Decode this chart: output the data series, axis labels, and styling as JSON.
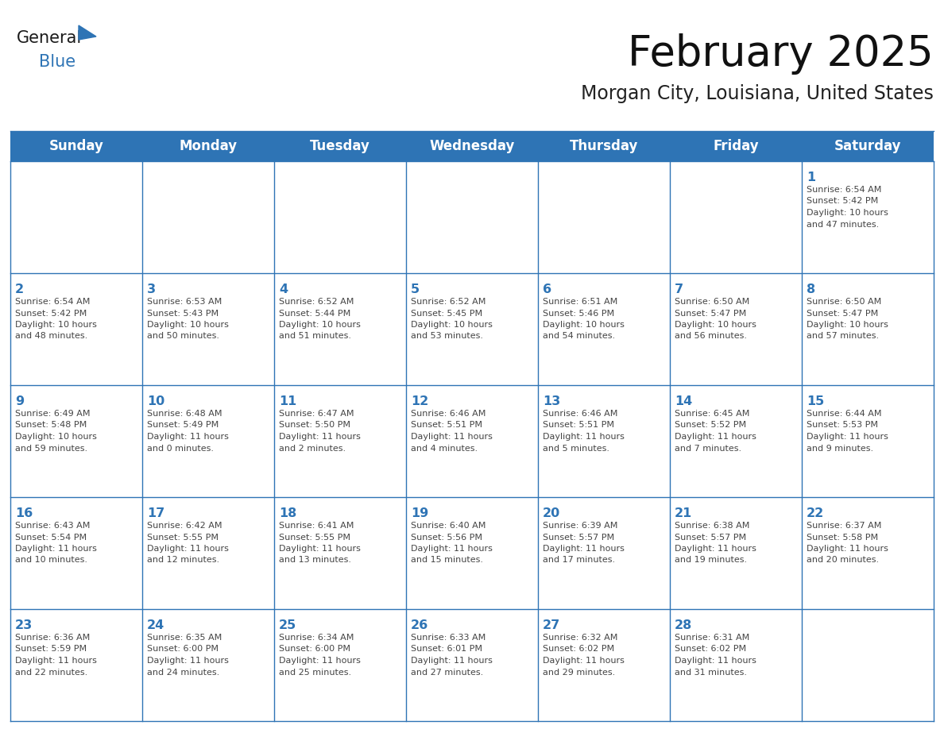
{
  "title": "February 2025",
  "subtitle": "Morgan City, Louisiana, United States",
  "header_color": "#2e74b5",
  "header_text_color": "#ffffff",
  "day_names": [
    "Sunday",
    "Monday",
    "Tuesday",
    "Wednesday",
    "Thursday",
    "Friday",
    "Saturday"
  ],
  "cell_bg_color": "#ffffff",
  "grid_color": "#2e74b5",
  "day_num_color": "#2e74b5",
  "text_color": "#444444",
  "logo_general_color": "#1a1a1a",
  "logo_blue_color": "#2e74b5",
  "weeks": [
    [
      {
        "day": null,
        "info": ""
      },
      {
        "day": null,
        "info": ""
      },
      {
        "day": null,
        "info": ""
      },
      {
        "day": null,
        "info": ""
      },
      {
        "day": null,
        "info": ""
      },
      {
        "day": null,
        "info": ""
      },
      {
        "day": 1,
        "info": "Sunrise: 6:54 AM\nSunset: 5:42 PM\nDaylight: 10 hours\nand 47 minutes."
      }
    ],
    [
      {
        "day": 2,
        "info": "Sunrise: 6:54 AM\nSunset: 5:42 PM\nDaylight: 10 hours\nand 48 minutes."
      },
      {
        "day": 3,
        "info": "Sunrise: 6:53 AM\nSunset: 5:43 PM\nDaylight: 10 hours\nand 50 minutes."
      },
      {
        "day": 4,
        "info": "Sunrise: 6:52 AM\nSunset: 5:44 PM\nDaylight: 10 hours\nand 51 minutes."
      },
      {
        "day": 5,
        "info": "Sunrise: 6:52 AM\nSunset: 5:45 PM\nDaylight: 10 hours\nand 53 minutes."
      },
      {
        "day": 6,
        "info": "Sunrise: 6:51 AM\nSunset: 5:46 PM\nDaylight: 10 hours\nand 54 minutes."
      },
      {
        "day": 7,
        "info": "Sunrise: 6:50 AM\nSunset: 5:47 PM\nDaylight: 10 hours\nand 56 minutes."
      },
      {
        "day": 8,
        "info": "Sunrise: 6:50 AM\nSunset: 5:47 PM\nDaylight: 10 hours\nand 57 minutes."
      }
    ],
    [
      {
        "day": 9,
        "info": "Sunrise: 6:49 AM\nSunset: 5:48 PM\nDaylight: 10 hours\nand 59 minutes."
      },
      {
        "day": 10,
        "info": "Sunrise: 6:48 AM\nSunset: 5:49 PM\nDaylight: 11 hours\nand 0 minutes."
      },
      {
        "day": 11,
        "info": "Sunrise: 6:47 AM\nSunset: 5:50 PM\nDaylight: 11 hours\nand 2 minutes."
      },
      {
        "day": 12,
        "info": "Sunrise: 6:46 AM\nSunset: 5:51 PM\nDaylight: 11 hours\nand 4 minutes."
      },
      {
        "day": 13,
        "info": "Sunrise: 6:46 AM\nSunset: 5:51 PM\nDaylight: 11 hours\nand 5 minutes."
      },
      {
        "day": 14,
        "info": "Sunrise: 6:45 AM\nSunset: 5:52 PM\nDaylight: 11 hours\nand 7 minutes."
      },
      {
        "day": 15,
        "info": "Sunrise: 6:44 AM\nSunset: 5:53 PM\nDaylight: 11 hours\nand 9 minutes."
      }
    ],
    [
      {
        "day": 16,
        "info": "Sunrise: 6:43 AM\nSunset: 5:54 PM\nDaylight: 11 hours\nand 10 minutes."
      },
      {
        "day": 17,
        "info": "Sunrise: 6:42 AM\nSunset: 5:55 PM\nDaylight: 11 hours\nand 12 minutes."
      },
      {
        "day": 18,
        "info": "Sunrise: 6:41 AM\nSunset: 5:55 PM\nDaylight: 11 hours\nand 13 minutes."
      },
      {
        "day": 19,
        "info": "Sunrise: 6:40 AM\nSunset: 5:56 PM\nDaylight: 11 hours\nand 15 minutes."
      },
      {
        "day": 20,
        "info": "Sunrise: 6:39 AM\nSunset: 5:57 PM\nDaylight: 11 hours\nand 17 minutes."
      },
      {
        "day": 21,
        "info": "Sunrise: 6:38 AM\nSunset: 5:57 PM\nDaylight: 11 hours\nand 19 minutes."
      },
      {
        "day": 22,
        "info": "Sunrise: 6:37 AM\nSunset: 5:58 PM\nDaylight: 11 hours\nand 20 minutes."
      }
    ],
    [
      {
        "day": 23,
        "info": "Sunrise: 6:36 AM\nSunset: 5:59 PM\nDaylight: 11 hours\nand 22 minutes."
      },
      {
        "day": 24,
        "info": "Sunrise: 6:35 AM\nSunset: 6:00 PM\nDaylight: 11 hours\nand 24 minutes."
      },
      {
        "day": 25,
        "info": "Sunrise: 6:34 AM\nSunset: 6:00 PM\nDaylight: 11 hours\nand 25 minutes."
      },
      {
        "day": 26,
        "info": "Sunrise: 6:33 AM\nSunset: 6:01 PM\nDaylight: 11 hours\nand 27 minutes."
      },
      {
        "day": 27,
        "info": "Sunrise: 6:32 AM\nSunset: 6:02 PM\nDaylight: 11 hours\nand 29 minutes."
      },
      {
        "day": 28,
        "info": "Sunrise: 6:31 AM\nSunset: 6:02 PM\nDaylight: 11 hours\nand 31 minutes."
      },
      {
        "day": null,
        "info": ""
      }
    ]
  ]
}
